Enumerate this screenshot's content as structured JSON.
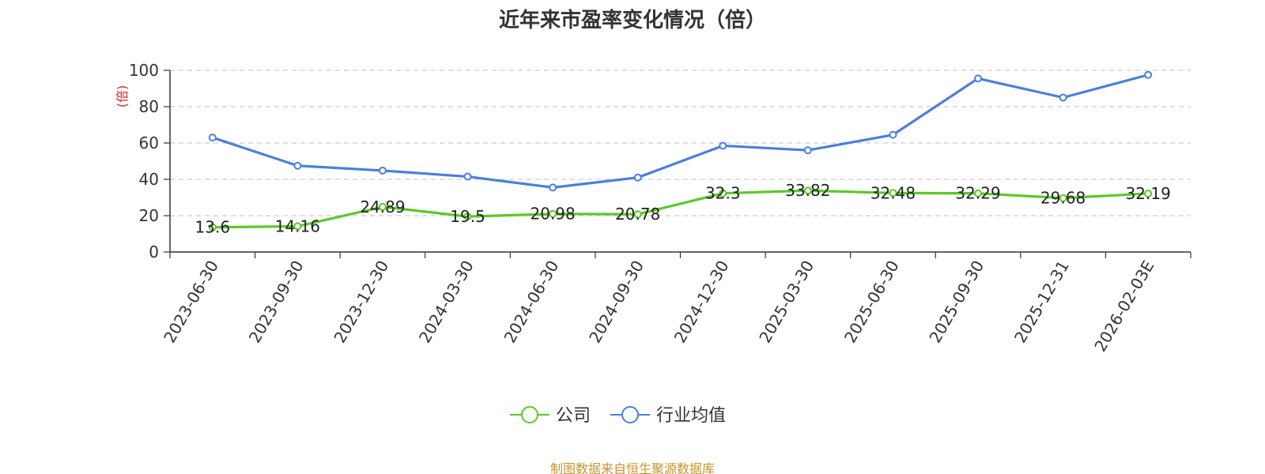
{
  "title": "近年来市盈率变化情况（倍）",
  "source_note": "制图数据来自恒生聚源数据库",
  "chart_data": {
    "type": "line",
    "title": "近年来市盈率变化情况（倍）",
    "xlabel": "",
    "ylabel": "(倍)",
    "ylim": [
      0,
      100
    ],
    "yticks": [
      0,
      20,
      40,
      60,
      80,
      100
    ],
    "grid": true,
    "legend_position": "bottom-center",
    "categories": [
      "2023-06-30",
      "2023-09-30",
      "2023-12-30",
      "2024-03-30",
      "2024-06-30",
      "2024-09-30",
      "2024-12-30",
      "2025-03-30",
      "2025-06-30",
      "2025-09-30",
      "2025-12-31",
      "2026-02-03E"
    ],
    "series": [
      {
        "name": "公司",
        "color": "#5cc828",
        "values": [
          13.6,
          14.16,
          24.89,
          19.5,
          20.98,
          20.78,
          32.3,
          33.82,
          32.48,
          32.29,
          29.68,
          32.19
        ],
        "labels": [
          "13.6",
          "14.16",
          "24.89",
          "19.5",
          "20.98",
          "20.78",
          "32.3",
          "33.82",
          "32.48",
          "32.29",
          "29.68",
          "32.19"
        ]
      },
      {
        "name": "行业均值",
        "color": "#4a7fdc",
        "values": [
          63.0,
          47.5,
          44.8,
          41.5,
          35.5,
          41.0,
          58.5,
          56.0,
          64.5,
          95.5,
          85.0,
          97.5
        ]
      }
    ],
    "ylabel_color": "#e02020"
  }
}
